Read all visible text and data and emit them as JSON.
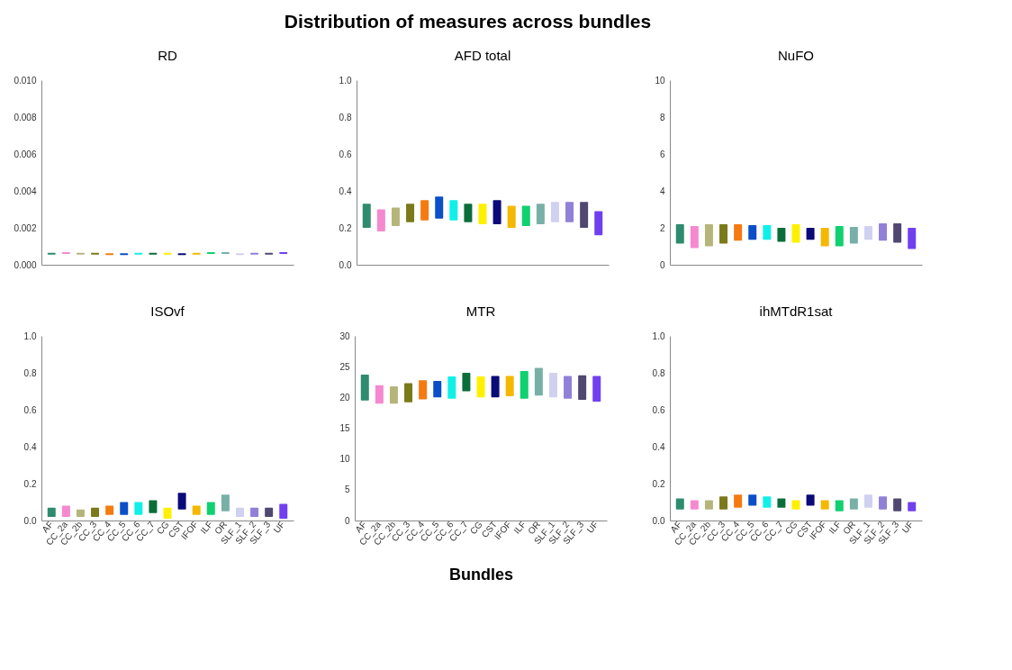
{
  "chart_data": [
    {
      "type": "bar",
      "title": "RD",
      "annotations": [
        "Distribution of measures across bundles"
      ],
      "tick_labels": "y",
      "categories": [
        null,
        null,
        null,
        null,
        null,
        null,
        null,
        null,
        null,
        null,
        null,
        null,
        null,
        null,
        null,
        null,
        null
      ],
      "colors": [
        "#2e8b6e",
        "#f589d0",
        "#b5b57a",
        "#7a7a1a",
        "#f57a10",
        "#0a4fc8",
        "#10f0e8",
        "#0a6e3a",
        "#fff000",
        "#0a0a78",
        "#f5b800",
        "#10d070",
        "#78b0a8",
        "#d0d0f0",
        "#9080d8",
        "#504870",
        "#7040f0"
      ],
      "base": [
        0.00055,
        0.00058,
        0.00055,
        0.00055,
        0.00052,
        0.00052,
        0.00055,
        0.00055,
        0.00055,
        0.00052,
        0.00055,
        0.00058,
        0.00058,
        0.00052,
        0.00055,
        0.00055,
        0.00058
      ],
      "values": [
        0.0001,
        0.0001,
        0.0001,
        0.0001,
        0.0001,
        0.0001,
        0.0001,
        0.0001,
        0.0001,
        0.0001,
        0.0001,
        0.0001,
        0.0001,
        0.0001,
        0.0001,
        0.0001,
        0.0001
      ],
      "ylim": [
        0,
        0.01
      ],
      "yticks": [
        {
          "value": 0,
          "label": "0.000"
        },
        {
          "value": 0.002,
          "label": "0.002"
        },
        {
          "value": 0.004,
          "label": "0.004"
        },
        {
          "value": 0.006,
          "label": "0.006"
        },
        {
          "value": 0.008,
          "label": "0.008"
        },
        {
          "value": 0.01,
          "label": "0.010"
        }
      ]
    },
    {
      "type": "bar",
      "title": "AFD total",
      "tick_labels": "y",
      "categories": [
        null,
        null,
        null,
        null,
        null,
        null,
        null,
        null,
        null,
        null,
        null,
        null,
        null,
        null,
        null,
        null,
        null
      ],
      "colors": [
        "#2e8b6e",
        "#f589d0",
        "#b5b57a",
        "#7a7a1a",
        "#f57a10",
        "#0a4fc8",
        "#10f0e8",
        "#0a6e3a",
        "#fff000",
        "#0a0a78",
        "#f5b800",
        "#10d070",
        "#78b0a8",
        "#d0d0f0",
        "#9080d8",
        "#504870",
        "#7040f0"
      ],
      "base": [
        0.2,
        0.18,
        0.21,
        0.23,
        0.24,
        0.25,
        0.24,
        0.23,
        0.22,
        0.22,
        0.2,
        0.21,
        0.22,
        0.23,
        0.23,
        0.2,
        0.16
      ],
      "values": [
        0.13,
        0.12,
        0.1,
        0.1,
        0.11,
        0.12,
        0.11,
        0.1,
        0.11,
        0.13,
        0.12,
        0.11,
        0.11,
        0.11,
        0.11,
        0.14,
        0.13
      ],
      "ylim": [
        0,
        1
      ],
      "yticks": [
        {
          "value": 0,
          "label": "0.0"
        },
        0.2,
        0.4,
        0.6,
        0.8,
        {
          "value": 1,
          "label": "1.0"
        }
      ]
    },
    {
      "type": "bar",
      "title": "NuFO",
      "tick_labels": "y",
      "categories": [
        null,
        null,
        null,
        null,
        null,
        null,
        null,
        null,
        null,
        null,
        null,
        null,
        null,
        null,
        null,
        null,
        null
      ],
      "colors": [
        "#2e8b6e",
        "#f589d0",
        "#b5b57a",
        "#7a7a1a",
        "#f57a10",
        "#0a4fc8",
        "#10f0e8",
        "#0a6e3a",
        "#fff000",
        "#0a0a78",
        "#f5b800",
        "#10d070",
        "#78b0a8",
        "#d0d0f0",
        "#9080d8",
        "#504870",
        "#7040f0"
      ],
      "base": [
        1.15,
        0.9,
        1.0,
        1.15,
        1.3,
        1.35,
        1.35,
        1.25,
        1.2,
        1.35,
        1.0,
        1.0,
        1.15,
        1.35,
        1.3,
        1.2,
        0.85
      ],
      "values": [
        1.05,
        1.2,
        1.2,
        1.05,
        0.9,
        0.8,
        0.8,
        0.75,
        1.0,
        0.65,
        1.0,
        1.1,
        0.9,
        0.75,
        0.95,
        1.05,
        1.15
      ],
      "ylim": [
        0,
        10
      ],
      "yticks": [
        0,
        2,
        4,
        6,
        8,
        10
      ]
    },
    {
      "type": "bar",
      "title": "ISOvf",
      "categories": [
        "AF",
        "CC_2a",
        "CC_2b",
        "CC_3",
        "CC_4",
        "CC_5",
        "CC_6",
        "CC_7",
        "CG",
        "CST",
        "IFOF",
        "ILF",
        "OR",
        "SLF_1",
        "SLF_2",
        "SLF_3",
        "UF"
      ],
      "colors": [
        "#2e8b6e",
        "#f589d0",
        "#b5b57a",
        "#7a7a1a",
        "#f57a10",
        "#0a4fc8",
        "#10f0e8",
        "#0a6e3a",
        "#fff000",
        "#0a0a78",
        "#f5b800",
        "#10d070",
        "#78b0a8",
        "#d0d0f0",
        "#9080d8",
        "#504870",
        "#7040f0"
      ],
      "base": [
        0.02,
        0.02,
        0.02,
        0.02,
        0.03,
        0.03,
        0.03,
        0.04,
        0.01,
        0.06,
        0.03,
        0.03,
        0.05,
        0.02,
        0.02,
        0.02,
        0.01
      ],
      "values": [
        0.05,
        0.06,
        0.04,
        0.05,
        0.05,
        0.07,
        0.07,
        0.07,
        0.06,
        0.09,
        0.05,
        0.07,
        0.09,
        0.05,
        0.05,
        0.05,
        0.08
      ],
      "ylim": [
        0,
        1
      ],
      "yticks": [
        {
          "value": 0,
          "label": "0.0"
        },
        0.2,
        0.4,
        0.6,
        0.8,
        {
          "value": 1,
          "label": "1.0"
        }
      ]
    },
    {
      "type": "bar",
      "title": "MTR",
      "xlabel": "Bundles",
      "categories": [
        "AF",
        "CC_2a",
        "CC_2b",
        "CC_3",
        "CC_4",
        "CC_5",
        "CC_6",
        "CC_7",
        "CG",
        "CST",
        "IFOF",
        "ILF",
        "OR",
        "SLF_1",
        "SLF_2",
        "SLF_3",
        "UF"
      ],
      "colors": [
        "#2e8b6e",
        "#f589d0",
        "#b5b57a",
        "#7a7a1a",
        "#f57a10",
        "#0a4fc8",
        "#10f0e8",
        "#0a6e3a",
        "#fff000",
        "#0a0a78",
        "#f5b800",
        "#10d070",
        "#78b0a8",
        "#d0d0f0",
        "#9080d8",
        "#504870",
        "#7040f0"
      ],
      "base": [
        19.5,
        19.0,
        19.0,
        19.2,
        19.7,
        20.0,
        19.8,
        21.0,
        20.0,
        20.0,
        20.2,
        19.8,
        20.3,
        20.0,
        19.8,
        19.6,
        19.3
      ],
      "values": [
        4.2,
        3.0,
        2.8,
        3.1,
        3.1,
        2.7,
        3.6,
        3.0,
        3.4,
        3.5,
        3.3,
        4.5,
        4.5,
        4.0,
        3.7,
        4.0,
        4.2
      ],
      "ylim": [
        0,
        30
      ],
      "yticks": [
        0,
        5,
        10,
        15,
        20,
        25,
        30
      ]
    },
    {
      "type": "bar",
      "title": "ihMTdR1sat",
      "categories": [
        "AF",
        "CC_2a",
        "CC_2b",
        "CC_3",
        "CC_4",
        "CC_5",
        "CC_6",
        "CC_7",
        "CG",
        "CST",
        "IFOF",
        "ILF",
        "OR",
        "SLF_1",
        "SLF_2",
        "SLF_3",
        "UF"
      ],
      "colors": [
        "#2e8b6e",
        "#f589d0",
        "#b5b57a",
        "#7a7a1a",
        "#f57a10",
        "#0a4fc8",
        "#10f0e8",
        "#0a6e3a",
        "#fff000",
        "#0a0a78",
        "#f5b800",
        "#10d070",
        "#78b0a8",
        "#d0d0f0",
        "#9080d8",
        "#504870",
        "#7040f0"
      ],
      "base": [
        0.06,
        0.06,
        0.06,
        0.06,
        0.07,
        0.08,
        0.07,
        0.07,
        0.06,
        0.08,
        0.06,
        0.05,
        0.06,
        0.07,
        0.06,
        0.05,
        0.05
      ],
      "values": [
        0.06,
        0.05,
        0.05,
        0.07,
        0.07,
        0.06,
        0.06,
        0.05,
        0.05,
        0.06,
        0.05,
        0.06,
        0.06,
        0.07,
        0.07,
        0.07,
        0.05
      ],
      "ylim": [
        0,
        1
      ],
      "yticks": [
        {
          "value": 0,
          "label": "0.0"
        },
        0.2,
        0.4,
        0.6,
        0.8,
        {
          "value": 1,
          "label": "1.0"
        }
      ]
    }
  ]
}
